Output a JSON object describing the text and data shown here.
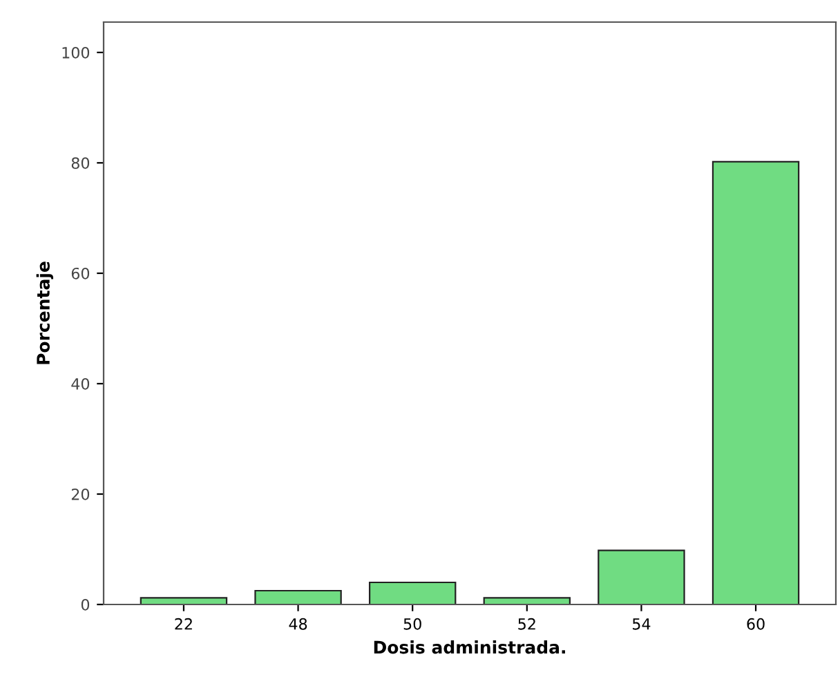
{
  "chart_data": {
    "type": "bar",
    "xlabel": "Dosis administrada.",
    "ylabel": "Porcentaje",
    "categories": [
      "22",
      "48",
      "50",
      "52",
      "54",
      "60"
    ],
    "values": [
      1.2,
      2.5,
      4.0,
      1.2,
      9.8,
      80.2
    ],
    "color": "#70dc82",
    "ylim": [
      0,
      105.5
    ],
    "yticks": [
      0,
      20,
      40,
      60,
      80,
      100
    ],
    "grid": false,
    "legend": false
  }
}
